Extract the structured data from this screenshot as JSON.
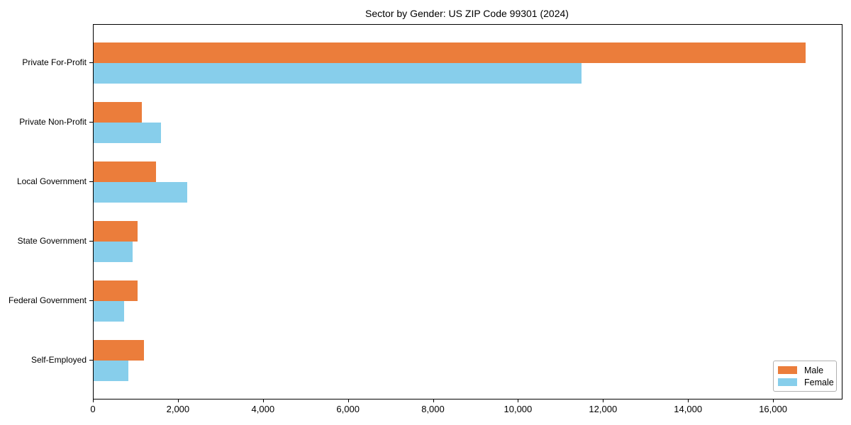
{
  "chart_data": {
    "type": "bar",
    "orientation": "horizontal",
    "title": "Sector by Gender: US ZIP Code 99301 (2024)",
    "categories": [
      "Private For-Profit",
      "Private Non-Profit",
      "Local Government",
      "State Government",
      "Federal Government",
      "Self-Employed"
    ],
    "series": [
      {
        "name": "Male",
        "color": "#EB7D3B",
        "values": [
          16750,
          1130,
          1470,
          1040,
          1040,
          1180
        ]
      },
      {
        "name": "Female",
        "color": "#87CEEB",
        "values": [
          11480,
          1580,
          2200,
          920,
          720,
          820
        ]
      }
    ],
    "xlim": [
      0,
      17600
    ],
    "x_ticks": [
      0,
      2000,
      4000,
      6000,
      8000,
      10000,
      12000,
      14000,
      16000
    ],
    "x_tick_labels": [
      "0",
      "2,000",
      "4,000",
      "6,000",
      "8,000",
      "10,000",
      "12,000",
      "14,000",
      "16,000"
    ],
    "xlabel": "",
    "ylabel": "",
    "grid": false,
    "legend_position": "lower right",
    "axis_color": "#000000"
  }
}
